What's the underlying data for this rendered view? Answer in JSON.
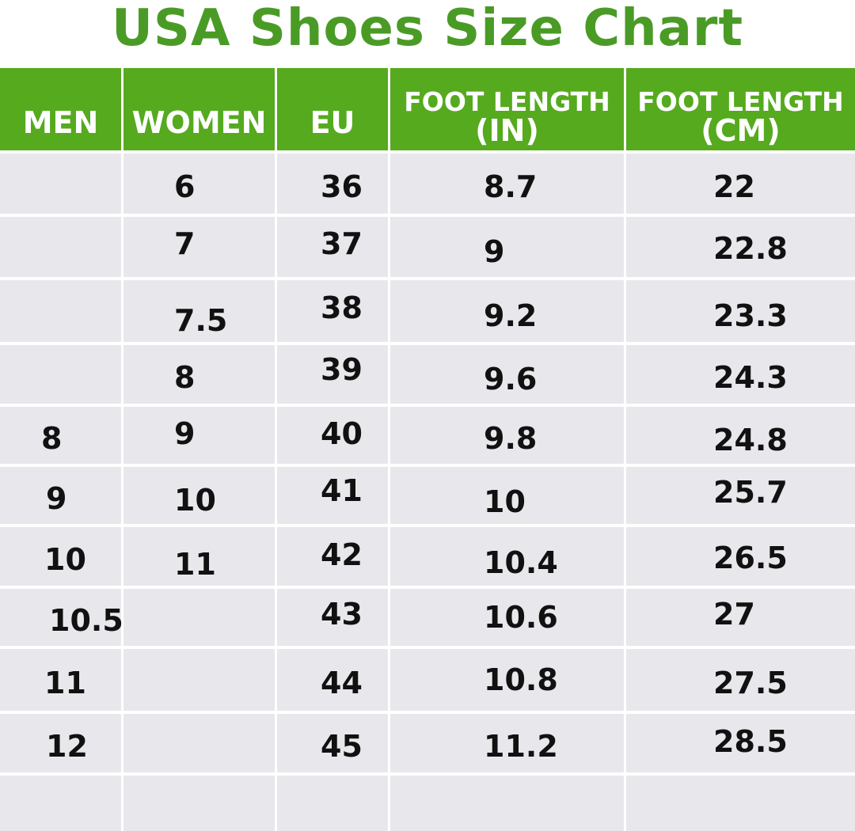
{
  "title": "USA Shoes Size Chart",
  "colors": {
    "title_green": "#4a9b26",
    "header_green": "#55aa1e",
    "cell_bg": "#e8e8ec",
    "grid_line": "#ffffff"
  },
  "headers": {
    "men": "MEN",
    "women": "WOMEN",
    "eu": "EU",
    "foot_in_line1": "FOOT LENGTH",
    "foot_in_line2": "(IN)",
    "foot_cm_line1": "FOOT LENGTH",
    "foot_cm_line2": "(CM)"
  },
  "rows": [
    {
      "men": "",
      "women": "6",
      "eu": "36",
      "in": "8.7",
      "cm": "22"
    },
    {
      "men": "",
      "women": "7",
      "eu": "37",
      "in": "9",
      "cm": "22.8"
    },
    {
      "men": "",
      "women": "7.5",
      "eu": "38",
      "in": "9.2",
      "cm": "23.3"
    },
    {
      "men": "",
      "women": "8",
      "eu": "39",
      "in": "9.6",
      "cm": "24.3"
    },
    {
      "men": "8",
      "women": "9",
      "eu": "40",
      "in": "9.8",
      "cm": "24.8"
    },
    {
      "men": "9",
      "women": "10",
      "eu": "41",
      "in": "10",
      "cm": "25.7"
    },
    {
      "men": "10",
      "women": "11",
      "eu": "42",
      "in": "10.4",
      "cm": "26.5"
    },
    {
      "men": "10.5",
      "women": "",
      "eu": "43",
      "in": "10.6",
      "cm": "27"
    },
    {
      "men": "11",
      "women": "",
      "eu": "44",
      "in": "10.8",
      "cm": "27.5"
    },
    {
      "men": "12",
      "women": "",
      "eu": "45",
      "in": "11.2",
      "cm": "28.5"
    }
  ]
}
